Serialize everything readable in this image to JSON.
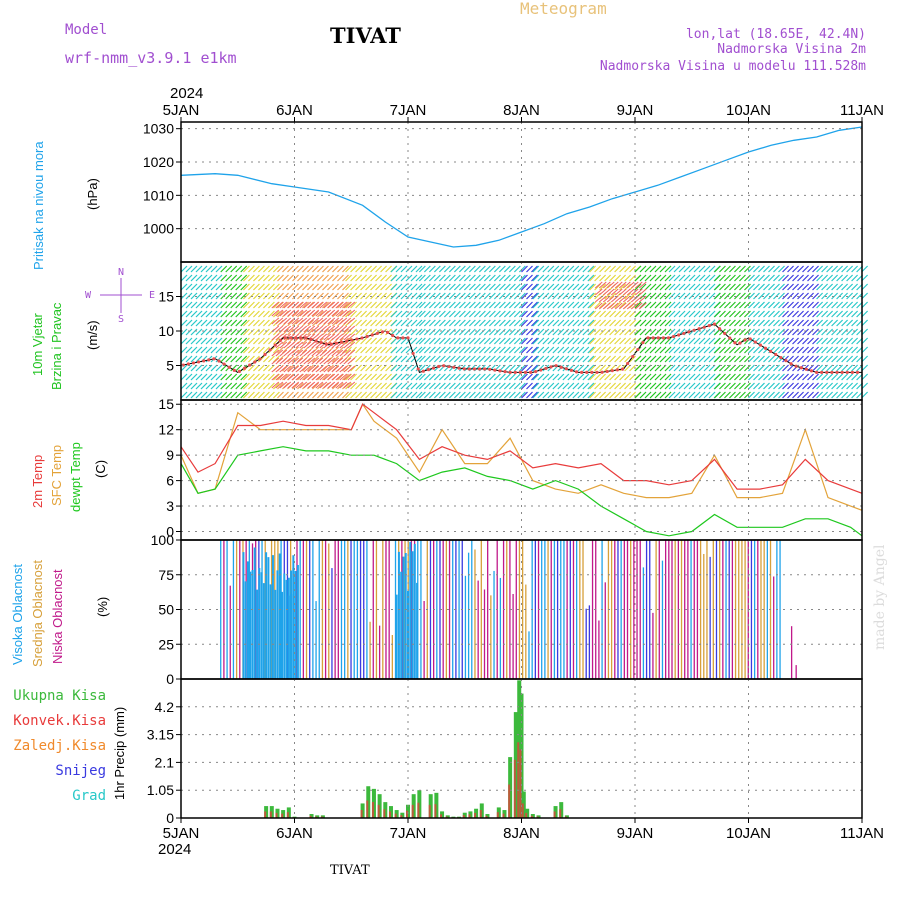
{
  "header": {
    "model_label": "Model",
    "model_name": "wrf-nmm_v3.9.1 e1km",
    "station": "TIVAT",
    "meteogram": "Meteogram",
    "lonlat": "lon,lat (18.65E, 42.4N)",
    "elevation": "Nadmorska Visina 2m",
    "model_elevation": "Nadmorska Visina u modelu 111.528m",
    "year_top": "2024",
    "year_bottom": "2024",
    "footer_station": "TIVAT",
    "credit": "made by Angel"
  },
  "colors": {
    "pressure": "#1fa3ea",
    "wind_label": "#22c422",
    "temp2m": "#e83b3b",
    "sfc": "#e3a33a",
    "dewpt": "#1ec81e",
    "high_cloud": "#1fa3ea",
    "mid_cloud": "#d7a03a",
    "low_cloud": "#c0198a",
    "precip_total": "#3cb93c",
    "conv": "#e83b3b",
    "frozen": "#f08a2c",
    "snow": "#3a3ae0",
    "hail": "#27c8c8",
    "title_purple": "#a14fd0",
    "title_orange": "#e8c27a"
  },
  "chart_data": [
    {
      "id": "pressure",
      "type": "line",
      "ylabel_main": "Pritisak na nivou mora",
      "ylabel_unit": "(hPa)",
      "x_tick_labels": [
        "5JAN",
        "6JAN",
        "7JAN",
        "8JAN",
        "9JAN",
        "10JAN",
        "11JAN"
      ],
      "x_range_days": [
        0,
        6
      ],
      "ylim": [
        990,
        1032
      ],
      "yticks": [
        1000,
        1010,
        1020,
        1030
      ],
      "series": [
        {
          "x": [
            0,
            0.3,
            0.5,
            0.8,
            1.0,
            1.3,
            1.6,
            1.8,
            2.0,
            2.2,
            2.4,
            2.6,
            2.8,
            3.0,
            3.2,
            3.4,
            3.6,
            3.8,
            4.0,
            4.2,
            4.4,
            4.6,
            4.8,
            5.0,
            5.2,
            5.4,
            5.6,
            5.8,
            6.0
          ],
          "values": [
            1016,
            1016.5,
            1016,
            1013.5,
            1012.5,
            1011,
            1007,
            1002,
            997.5,
            996,
            994.5,
            995,
            996.5,
            999,
            1001.5,
            1004.5,
            1006.5,
            1009,
            1011,
            1013,
            1015.5,
            1018,
            1020.5,
            1023,
            1025,
            1026.5,
            1027.5,
            1029.5,
            1030.5
          ]
        }
      ]
    },
    {
      "id": "wind",
      "type": "line",
      "ylabel_main": "10m Vjetar",
      "ylabel_main2": "Brzina i Pravac",
      "ylabel_unit": "(m/s)",
      "compass": [
        "N",
        "E",
        "W",
        "S"
      ],
      "ylim": [
        0,
        20
      ],
      "yticks": [
        5,
        10,
        15
      ],
      "series": [
        {
          "name": "speed",
          "x": [
            0,
            0.3,
            0.5,
            0.7,
            0.9,
            1.1,
            1.3,
            1.6,
            1.8,
            1.9,
            2.0,
            2.1,
            2.3,
            2.5,
            2.7,
            2.9,
            3.1,
            3.3,
            3.5,
            3.7,
            3.9,
            4.1,
            4.3,
            4.5,
            4.7,
            4.9,
            5.0,
            5.2,
            5.4,
            5.6,
            5.8,
            6.0
          ],
          "values": [
            5,
            6,
            4,
            6,
            9,
            9,
            8,
            9,
            10,
            9,
            9,
            4,
            5,
            4.5,
            4.5,
            4,
            4,
            5,
            4,
            4,
            4.5,
            9,
            9,
            10,
            11,
            8,
            9,
            7,
            5,
            4,
            4,
            4
          ]
        }
      ]
    },
    {
      "id": "temperature",
      "type": "line",
      "ylabel_main": "2m Temp",
      "ylabel_main2": "SFC Temp",
      "ylabel_main3": "dewpt Temp",
      "ylabel_unit": "(C)",
      "ylim": [
        -1,
        15.5
      ],
      "yticks": [
        0,
        3,
        6,
        9,
        12,
        15
      ],
      "x": [
        0,
        0.15,
        0.3,
        0.5,
        0.7,
        0.9,
        1.1,
        1.3,
        1.5,
        1.6,
        1.7,
        1.9,
        2.1,
        2.3,
        2.5,
        2.7,
        2.9,
        3.1,
        3.3,
        3.5,
        3.7,
        3.9,
        4.1,
        4.3,
        4.5,
        4.7,
        4.9,
        5.1,
        5.3,
        5.5,
        5.7,
        5.9,
        6.0
      ],
      "series": [
        {
          "name": "2m Temp",
          "values": [
            10,
            7,
            8,
            12.5,
            12.5,
            13,
            12.5,
            12.5,
            12,
            15,
            14,
            12,
            8.5,
            10,
            9,
            8.5,
            9.5,
            7.5,
            8,
            7.5,
            8,
            6,
            6,
            5.5,
            6,
            8.5,
            5,
            5,
            5.5,
            8.5,
            6,
            5,
            4.5
          ]
        },
        {
          "name": "SFC Temp",
          "values": [
            9,
            4.5,
            5,
            14,
            12,
            12,
            12,
            12,
            12,
            15,
            13,
            11,
            7,
            12,
            8,
            8,
            11,
            6,
            5,
            4.5,
            5.5,
            4.5,
            4,
            4,
            4.5,
            9,
            4,
            4,
            4.5,
            12,
            4,
            3,
            2.5
          ]
        },
        {
          "name": "dewpt Temp",
          "values": [
            8,
            4.5,
            5,
            9,
            9.5,
            10,
            9.5,
            9.5,
            9,
            9,
            9,
            8,
            6,
            7,
            7.5,
            6.5,
            6,
            5,
            6,
            5,
            3,
            1.5,
            0,
            -0.5,
            0,
            2,
            0.5,
            0.5,
            0.5,
            1.5,
            1.5,
            0.5,
            -0.5
          ]
        }
      ]
    },
    {
      "id": "cloud",
      "type": "bar",
      "ylabel_main": "Visoka Oblacnost",
      "ylabel_main2": "Srednja Oblacnost",
      "ylabel_main3": "Niska Oblacnost",
      "ylabel_unit": "(%)",
      "ylim": [
        0,
        100
      ],
      "yticks": [
        0,
        25,
        50,
        75,
        100
      ],
      "active_range": [
        0.35,
        5.3
      ]
    },
    {
      "id": "precip",
      "type": "bar",
      "legend": [
        "Ukupna Kisa",
        "Konvek.Kisa",
        "Zaledj.Kisa",
        "Snijeg",
        "Grad"
      ],
      "ylabel_unit": "1hr Precip (mm)",
      "ylim": [
        0,
        5.25
      ],
      "yticks": [
        0,
        1.05,
        2.1,
        3.15,
        4.2
      ],
      "ytick_labels": [
        "0",
        "1.05",
        "2.1",
        "3.15",
        "4.2"
      ],
      "x": [
        0.75,
        0.8,
        0.85,
        0.9,
        0.95,
        1.0,
        1.15,
        1.2,
        1.25,
        1.6,
        1.65,
        1.7,
        1.75,
        1.8,
        1.85,
        1.9,
        1.95,
        2.0,
        2.05,
        2.1,
        2.2,
        2.25,
        2.3,
        2.35,
        2.4,
        2.45,
        2.5,
        2.55,
        2.6,
        2.65,
        2.7,
        2.8,
        2.85,
        2.9,
        2.95,
        2.98,
        3.0,
        3.02,
        3.05,
        3.1,
        3.15,
        3.3,
        3.35,
        3.4
      ],
      "values": [
        0.45,
        0.45,
        0.35,
        0.3,
        0.4,
        0.05,
        0.15,
        0.1,
        0.1,
        0.55,
        1.2,
        1.1,
        0.9,
        0.6,
        0.45,
        0.3,
        0.2,
        0.5,
        0.9,
        1.05,
        0.9,
        0.95,
        0.25,
        0.1,
        0.05,
        0.05,
        0.2,
        0.25,
        0.35,
        0.55,
        0.15,
        0.4,
        0.3,
        2.3,
        4.0,
        5.2,
        4.7,
        1.0,
        0.35,
        0.15,
        0.1,
        0.45,
        0.6,
        0.1
      ]
    }
  ]
}
